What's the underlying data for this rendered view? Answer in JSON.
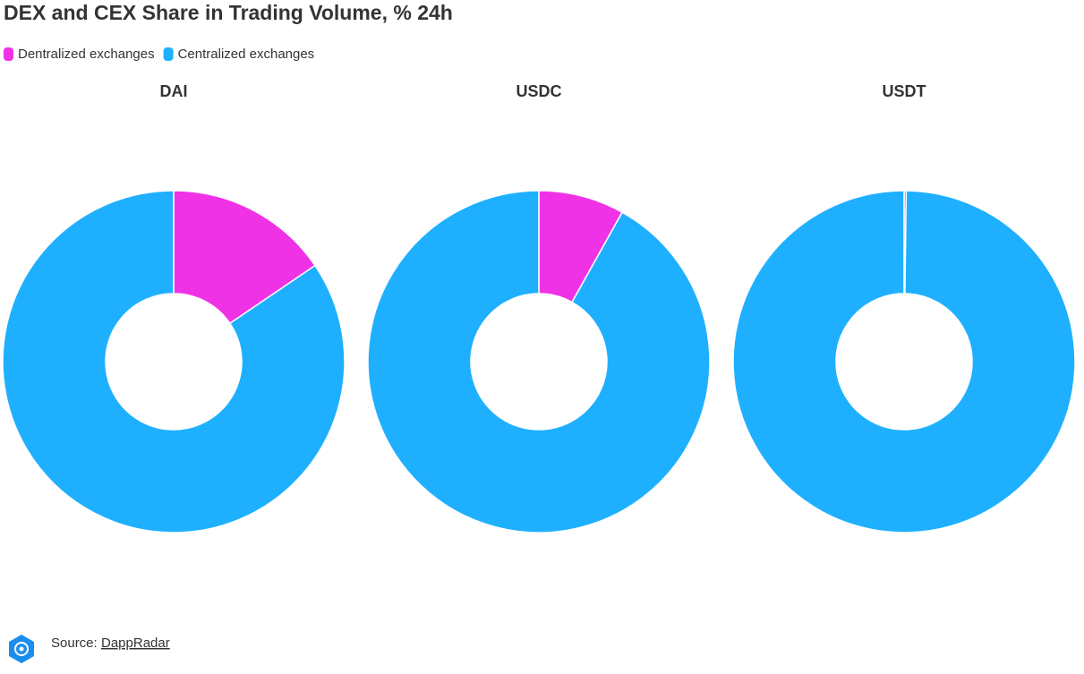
{
  "title": "DEX and CEX Share in Trading Volume, % 24h",
  "source": {
    "label": "Source:",
    "text": "DappRadar"
  },
  "chart_data": [
    {
      "type": "pie",
      "title": "DAI",
      "categories": [
        "Dentralized exchanges",
        "Centralized exchanges"
      ],
      "values": [
        15.5,
        84.5
      ],
      "colors": [
        "#f032e6",
        "#1eb0ff"
      ]
    },
    {
      "type": "pie",
      "title": "USDC",
      "categories": [
        "Dentralized exchanges",
        "Centralized exchanges"
      ],
      "values": [
        8.1,
        91.9
      ],
      "colors": [
        "#f032e6",
        "#1eb0ff"
      ]
    },
    {
      "type": "pie",
      "title": "USDT",
      "categories": [
        "Dentralized exchanges",
        "Centralized exchanges"
      ],
      "values": [
        0.2,
        99.8
      ],
      "colors": [
        "#f032e6",
        "#1eb0ff"
      ]
    }
  ]
}
